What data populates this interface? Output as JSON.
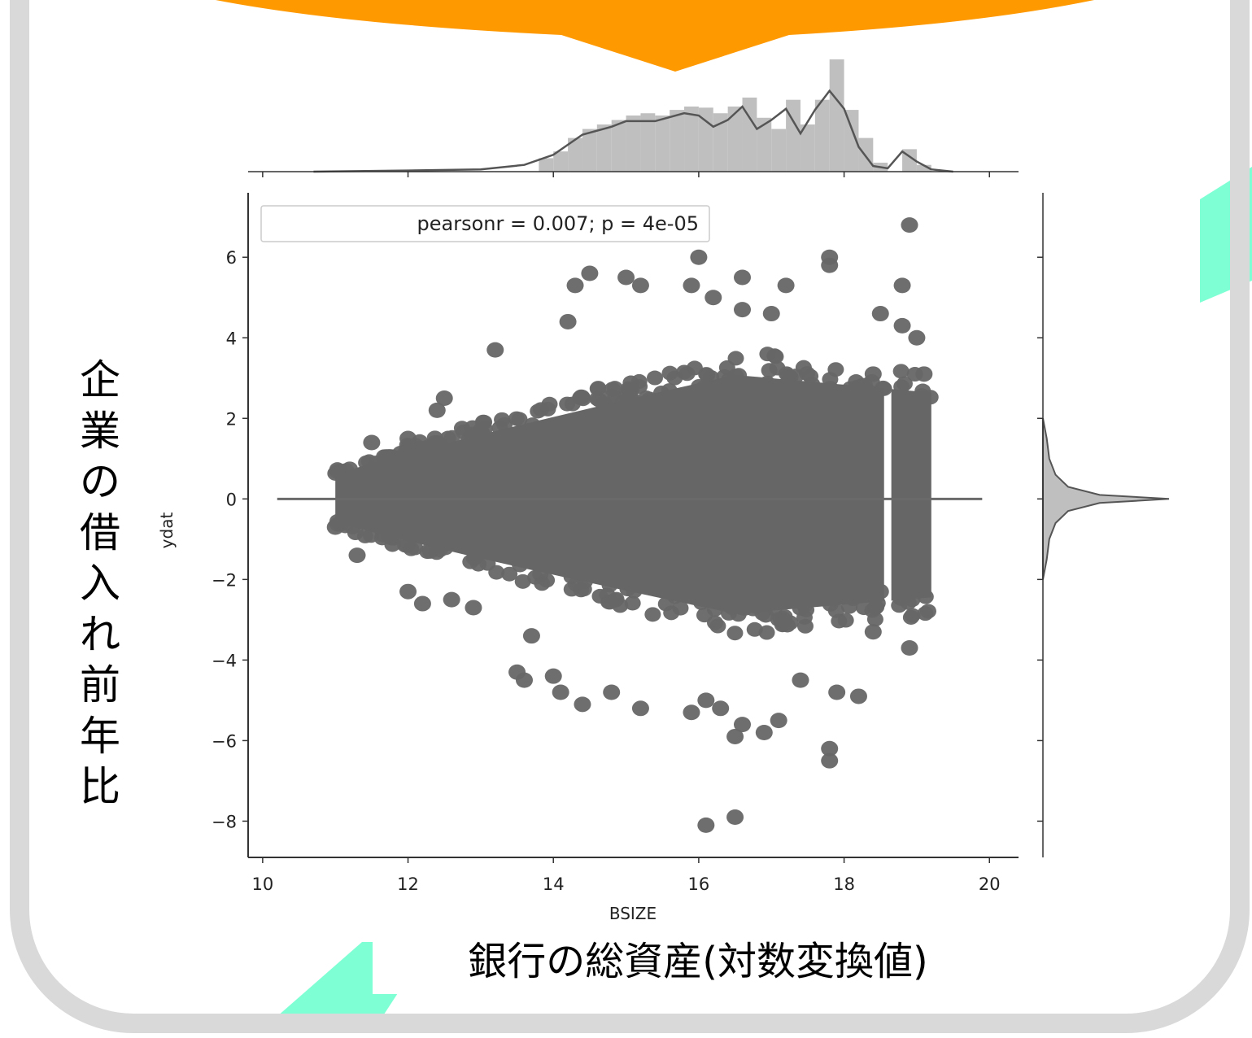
{
  "slide": {
    "frame_color": "#d9d9d9",
    "banner_color": "#ff9900",
    "accent_color": "#7fffd4",
    "y_axis_caption": "企業の借入れ前年比",
    "x_axis_caption": "銀行の総資産(対数変換値)"
  },
  "chart_data": {
    "type": "scatter",
    "xlabel": "BSIZE",
    "ylabel": "ydat",
    "legend": "pearsonr = 0.007; p = 4e-05",
    "legend_position": "top-left",
    "xlim": [
      9.8,
      20.4
    ],
    "ylim": [
      -8.9,
      7.6
    ],
    "x_ticks": [
      10,
      12,
      14,
      16,
      18,
      20
    ],
    "y_ticks": [
      6,
      4,
      2,
      0,
      -2,
      -4,
      -6,
      -8
    ],
    "x_tick_labels": [
      "10",
      "12",
      "14",
      "16",
      "18",
      "20"
    ],
    "y_tick_labels": [
      "6",
      "4",
      "2",
      "0",
      "−2",
      "−4",
      "−6",
      "−8"
    ],
    "point_color": "#666666",
    "marginal_color": "#bfbfbf",
    "regression_line": {
      "slope": 0.0,
      "intercept": 0.0,
      "x_range": [
        10.2,
        19.9
      ]
    },
    "density": {
      "x_range": [
        11.0,
        19.2
      ],
      "left_spread": 0.55,
      "right_spread": 2.25,
      "center_x": 16.5,
      "gap_x": [
        18.55,
        18.65
      ]
    },
    "points": [
      [
        18.9,
        6.8
      ],
      [
        16.0,
        6.0
      ],
      [
        17.8,
        6.0
      ],
      [
        17.8,
        5.8
      ],
      [
        16.6,
        5.5
      ],
      [
        15.0,
        5.5
      ],
      [
        14.5,
        5.6
      ],
      [
        14.3,
        5.3
      ],
      [
        17.2,
        5.3
      ],
      [
        18.8,
        5.3
      ],
      [
        15.2,
        5.3
      ],
      [
        15.9,
        5.3
      ],
      [
        16.2,
        5.0
      ],
      [
        16.6,
        4.7
      ],
      [
        17.0,
        4.6
      ],
      [
        14.2,
        4.4
      ],
      [
        13.2,
        3.7
      ],
      [
        12.5,
        2.5
      ],
      [
        12.4,
        2.2
      ],
      [
        12.0,
        1.5
      ],
      [
        11.5,
        1.4
      ],
      [
        11.4,
        0.1
      ],
      [
        11.3,
        -0.1
      ],
      [
        11.0,
        -0.7
      ],
      [
        11.3,
        -1.4
      ],
      [
        12.0,
        -2.3
      ],
      [
        12.2,
        -2.6
      ],
      [
        12.6,
        -2.5
      ],
      [
        12.9,
        -2.7
      ],
      [
        13.7,
        -3.4
      ],
      [
        13.5,
        -4.3
      ],
      [
        13.6,
        -4.5
      ],
      [
        14.0,
        -4.4
      ],
      [
        14.1,
        -4.8
      ],
      [
        14.4,
        -5.1
      ],
      [
        14.8,
        -4.8
      ],
      [
        15.2,
        -5.2
      ],
      [
        15.9,
        -5.3
      ],
      [
        16.1,
        -5.0
      ],
      [
        16.3,
        -5.2
      ],
      [
        16.6,
        -5.6
      ],
      [
        16.9,
        -5.8
      ],
      [
        17.1,
        -5.5
      ],
      [
        16.5,
        -5.9
      ],
      [
        17.8,
        -6.2
      ],
      [
        17.8,
        -6.5
      ],
      [
        16.1,
        -8.1
      ],
      [
        16.5,
        -7.9
      ],
      [
        17.4,
        -4.5
      ],
      [
        17.9,
        -4.8
      ],
      [
        18.2,
        -4.9
      ],
      [
        18.9,
        -3.7
      ],
      [
        18.4,
        -3.3
      ],
      [
        18.5,
        -2.3
      ],
      [
        18.5,
        4.6
      ],
      [
        18.4,
        3.1
      ],
      [
        19.1,
        3.1
      ],
      [
        19.0,
        4.0
      ],
      [
        18.8,
        4.3
      ]
    ],
    "top_marginal": {
      "bin_width": 0.2,
      "bins": [
        [
          13.8,
          0.12
        ],
        [
          14.0,
          0.18
        ],
        [
          14.2,
          0.3
        ],
        [
          14.4,
          0.38
        ],
        [
          14.6,
          0.42
        ],
        [
          14.8,
          0.46
        ],
        [
          15.0,
          0.5
        ],
        [
          15.2,
          0.52
        ],
        [
          15.4,
          0.5
        ],
        [
          15.6,
          0.55
        ],
        [
          15.8,
          0.58
        ],
        [
          16.0,
          0.57
        ],
        [
          16.2,
          0.52
        ],
        [
          16.4,
          0.58
        ],
        [
          16.6,
          0.66
        ],
        [
          16.8,
          0.48
        ],
        [
          17.0,
          0.38
        ],
        [
          17.2,
          0.64
        ],
        [
          17.4,
          0.42
        ],
        [
          17.6,
          0.64
        ],
        [
          17.8,
          1.0
        ],
        [
          18.0,
          0.55
        ],
        [
          18.2,
          0.3
        ],
        [
          18.4,
          0.08
        ],
        [
          18.8,
          0.2
        ],
        [
          19.0,
          0.06
        ]
      ],
      "kde": [
        [
          10.7,
          0.0
        ],
        [
          12.0,
          0.01
        ],
        [
          13.0,
          0.02
        ],
        [
          13.6,
          0.06
        ],
        [
          14.0,
          0.15
        ],
        [
          14.4,
          0.33
        ],
        [
          14.8,
          0.4
        ],
        [
          15.0,
          0.45
        ],
        [
          15.4,
          0.45
        ],
        [
          15.8,
          0.52
        ],
        [
          16.0,
          0.5
        ],
        [
          16.2,
          0.4
        ],
        [
          16.4,
          0.46
        ],
        [
          16.6,
          0.58
        ],
        [
          16.8,
          0.38
        ],
        [
          17.0,
          0.46
        ],
        [
          17.2,
          0.56
        ],
        [
          17.4,
          0.34
        ],
        [
          17.6,
          0.55
        ],
        [
          17.8,
          0.72
        ],
        [
          18.0,
          0.56
        ],
        [
          18.2,
          0.22
        ],
        [
          18.4,
          0.05
        ],
        [
          18.6,
          0.03
        ],
        [
          18.8,
          0.18
        ],
        [
          19.0,
          0.09
        ],
        [
          19.2,
          0.02
        ],
        [
          19.5,
          0.0
        ]
      ]
    },
    "right_marginal": {
      "kde": [
        [
          -2.0,
          0.0
        ],
        [
          -1.5,
          0.03
        ],
        [
          -1.0,
          0.05
        ],
        [
          -0.6,
          0.1
        ],
        [
          -0.3,
          0.2
        ],
        [
          -0.1,
          0.45
        ],
        [
          0.0,
          1.0
        ],
        [
          0.1,
          0.45
        ],
        [
          0.3,
          0.2
        ],
        [
          0.6,
          0.1
        ],
        [
          1.0,
          0.05
        ],
        [
          1.5,
          0.03
        ],
        [
          2.0,
          0.0
        ]
      ]
    }
  }
}
